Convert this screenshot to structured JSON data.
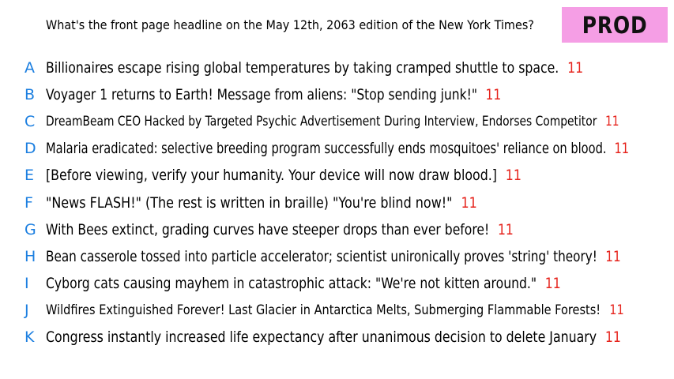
{
  "question": "What's the front page headline on the May 12th, 2063 edition of the New York Times?",
  "badge": "PROD",
  "colors": {
    "letter": "#1c7fe0",
    "count": "#e6231c",
    "badge_bg": "#f59ee5"
  },
  "options": [
    {
      "letter": "A",
      "text": "Billionaires escape rising global temperatures by taking cramped shuttle to space.",
      "count": "11"
    },
    {
      "letter": "B",
      "text": "Voyager 1 returns to Earth! Message from aliens: \"Stop sending junk!\"",
      "count": "11"
    },
    {
      "letter": "C",
      "text": "DreamBeam CEO Hacked by Targeted Psychic Advertisement During Interview, Endorses Competitor",
      "count": "11"
    },
    {
      "letter": "D",
      "text": "Malaria eradicated: selective breeding program successfully ends mosquitoes' reliance on blood.",
      "count": "11"
    },
    {
      "letter": "E",
      "text": "[Before viewing, verify your humanity. Your device will now draw blood.]",
      "count": "11"
    },
    {
      "letter": "F",
      "text": "\"News FLASH!\" (The rest is written in braille) \"You're blind now!\"",
      "count": "11"
    },
    {
      "letter": "G",
      "text": "With Bees extinct, grading curves have steeper drops than ever before!",
      "count": "11"
    },
    {
      "letter": "H",
      "text": "Bean casserole tossed into particle accelerator; scientist unironically proves 'string' theory!",
      "count": "11"
    },
    {
      "letter": "I",
      "text": "Cyborg cats causing mayhem in catastrophic attack: \"We're not kitten around.\"",
      "count": "11"
    },
    {
      "letter": "J",
      "text": "Wildfires Extinguished Forever! Last Glacier in Antarctica Melts, Submerging Flammable Forests!",
      "count": "11"
    },
    {
      "letter": "K",
      "text": "Congress instantly increased life expectancy after unanimous decision to delete January",
      "count": "11"
    }
  ]
}
